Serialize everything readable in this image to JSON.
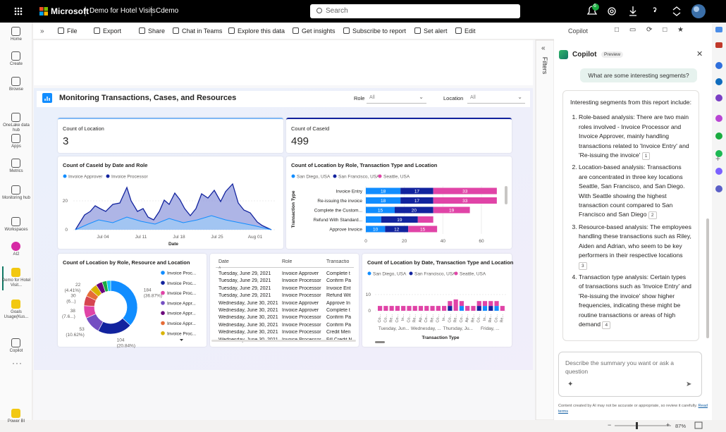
{
  "topbar": {
    "brand": "Microsoft",
    "report_name": "Demo for Hotel Visits",
    "workspace": "Cdemo",
    "search_placeholder": "Search",
    "notification_count": "6"
  },
  "nav": [
    "Home",
    "Create",
    "Browse",
    "OneLake data hub",
    "Apps",
    "Metrics",
    "Monitoring hub",
    "Workspaces",
    "AI2",
    "Demo for Hotel Visit...",
    "Goals Usage(Kus...",
    "Copilot",
    "Power BI"
  ],
  "toolbar": [
    "File",
    "Export",
    "Share",
    "Chat in Teams",
    "Explore this data",
    "Get insights",
    "Subscribe to report",
    "Set alert",
    "Edit"
  ],
  "side_tab": "Copilot",
  "filters_label": "Filters",
  "report": {
    "title": "Monitoring Transactions, Cases, and Resources",
    "slicers": [
      {
        "label": "Role",
        "value": "All"
      },
      {
        "label": "Location",
        "value": "All"
      }
    ],
    "cards": [
      {
        "title": "Count of Location",
        "value": "3"
      },
      {
        "title": "Count of CaseId",
        "value": "499"
      }
    ],
    "area_chart": {
      "title": "Count of CaseId by Date and Role",
      "legend": [
        "Invoice Approver",
        "Invoice Processor"
      ],
      "yticks": [
        "0",
        "20"
      ],
      "xticks": [
        "Jul 04",
        "Jul 11",
        "Jul 18",
        "Jul 25",
        "Aug 01"
      ],
      "x_label": "Date"
    },
    "bar_chart": {
      "title": "Count of Location by Role, Transaction Type and Location",
      "y_label": "Transaction Type",
      "categories": [
        "Invoice Entry",
        "Re-issuing the invoice",
        "Complete the Custom...",
        "Refund With Standard...",
        "Approve Invoice"
      ],
      "series": [
        {
          "name": "San Diego, USA",
          "color": "#118dff",
          "values": [
            18,
            18,
            15,
            8,
            10
          ]
        },
        {
          "name": "San Francisco, USA",
          "color": "#12239e",
          "values": [
            17,
            17,
            20,
            19,
            12
          ]
        },
        {
          "name": "Seattle, USA",
          "color": "#e044a7",
          "values": [
            33,
            33,
            19,
            8,
            15
          ]
        }
      ],
      "xlim": [
        0,
        60
      ],
      "xticks": [
        0,
        20,
        40,
        60
      ]
    },
    "donut_chart": {
      "title": "Count of Location by Role, Resource and Location",
      "values": [
        184,
        104,
        53,
        38,
        30,
        22,
        22,
        20,
        14,
        12
      ],
      "pct_labels": [
        "(36.87%)",
        "(20.84%)",
        "(10.62%)",
        "(7.6...)",
        "(6...)",
        "(4.41%)",
        null,
        null,
        null,
        null
      ],
      "colors": [
        "#118dff",
        "#12239e",
        "#744ec2",
        "#e044a7",
        "#d64550",
        "#e66c37",
        "#d9b300",
        "#6b007b",
        "#1aab40",
        "#15c6f4"
      ],
      "legend": [
        {
          "name": "Invoice Proc...",
          "color": "#118dff"
        },
        {
          "name": "Invoice Proc...",
          "color": "#12239e"
        },
        {
          "name": "Invoice Proc...",
          "color": "#e044a7"
        },
        {
          "name": "Invoice Appr...",
          "color": "#744ec2"
        },
        {
          "name": "Invoice Appr...",
          "color": "#6b007b"
        },
        {
          "name": "Invoice Appr...",
          "color": "#e66c37"
        },
        {
          "name": "Invoice Proc...",
          "color": "#d9b300"
        }
      ]
    },
    "table": {
      "columns": [
        "Date",
        "Role",
        "Transactio"
      ],
      "rows": [
        [
          "Tuesday, June 29, 2021",
          "Invoice Approver",
          "Complete t"
        ],
        [
          "Tuesday, June 29, 2021",
          "Invoice Processor",
          "Confirm Pa"
        ],
        [
          "Tuesday, June 29, 2021",
          "Invoice Processor",
          "Invoice Ent"
        ],
        [
          "Tuesday, June 29, 2021",
          "Invoice Processor",
          "Refund Wit"
        ],
        [
          "Wednesday, June 30, 2021",
          "Invoice Approver",
          "Approve In"
        ],
        [
          "Wednesday, June 30, 2021",
          "Invoice Approver",
          "Complete t"
        ],
        [
          "Wednesday, June 30, 2021",
          "Invoice Processor",
          "Confirm Pa"
        ],
        [
          "Wednesday, June 30, 2021",
          "Invoice Processor",
          "Confirm Pa"
        ],
        [
          "Wednesday, June 30, 2021",
          "Invoice Processor",
          "Credit Men"
        ],
        [
          "Wednesday, June 30, 2021",
          "Invoice Processor",
          "Fill Credit N"
        ]
      ]
    },
    "column_chart": {
      "title": "Count of Location by Date, Transaction Type and Location",
      "x_label": "Transaction Type",
      "categories": [
        "Co...",
        "Co...",
        "Re...",
        "Co...",
        "In...",
        "Co...",
        "Re...",
        "Ap...",
        "Co...",
        "Re...",
        "Co...",
        "In...",
        "Co...",
        "Re...",
        "Co...",
        "Ap...",
        "Re...",
        "Co...",
        "In...",
        "Re...",
        "Co...",
        "Re..."
      ],
      "groups": [
        "Tuesday, Jun...",
        "Wednesday, ...",
        "Thursday, Ju...",
        "Friday, ..."
      ],
      "series": [
        {
          "name": "San Diego, USA",
          "color": "#118dff",
          "values": [
            0,
            0,
            0,
            0,
            0,
            0,
            0,
            0,
            0,
            0,
            0,
            0,
            0,
            0,
            3,
            0,
            0,
            0,
            3,
            0,
            3,
            0
          ]
        },
        {
          "name": "San Francisco, USA",
          "color": "#12239e",
          "values": [
            0,
            0,
            0,
            0,
            0,
            0,
            0,
            0,
            0,
            0,
            0,
            0,
            3,
            0,
            0,
            0,
            0,
            3,
            0,
            3,
            0,
            0
          ]
        },
        {
          "name": "Seattle, USA",
          "color": "#e044a7",
          "values": [
            3,
            3,
            3,
            3,
            3,
            3,
            3,
            3,
            3,
            3,
            3,
            3,
            3,
            7,
            3,
            3,
            3,
            3,
            3,
            3,
            3,
            3
          ]
        }
      ],
      "ylim": [
        0,
        10
      ],
      "yticks": [
        0,
        10
      ]
    }
  },
  "copilot": {
    "title": "Copilot",
    "badge": "Preview",
    "user_message": "What are some interesting segments?",
    "intro": "Interesting segments from this report include:",
    "points": [
      {
        "text": "Role-based analysis: There are two main roles involved - Invoice Processor and Invoice Approver, mainly handling transactions related to 'Invoice Entry' and 'Re-issuing the invoice'",
        "citation": "1"
      },
      {
        "text": "Location-based analysis: Transactions are concentrated in three key locations Seattle, San Francisco, and San Diego. With Seattle showing the highest transaction count compared to San Francisco and San Diego",
        "citation": "2"
      },
      {
        "text": "Resource-based analysis: The employees handling these transactions such as Riley, Aiden and Adrian, who seem to be key performers in their respective locations",
        "citation": "3"
      },
      {
        "text": "Transaction type analysis: Certain types of transactions such as 'Invoice Entry' and 'Re-issuing the invoice' show higher frequencies, indicating these might be routine transactions or areas of high demand",
        "citation": "4"
      }
    ],
    "input_placeholder": "Describe the summary you want or ask a question",
    "disclaimer": "Content created by AI may not be accurate or appropriate, so review it carefully.",
    "terms_link": "Read terms"
  },
  "status": {
    "zoom": "87%"
  }
}
